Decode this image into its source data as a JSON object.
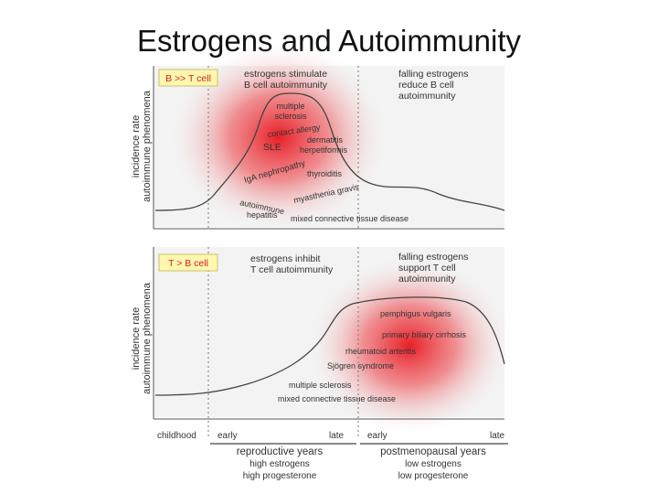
{
  "slide": {
    "title": "Estrogens and Autoimmunity"
  },
  "colors": {
    "heat": "#e8131c",
    "panel_bg": "#f3f3f3",
    "badge_bg": "#fff7b0",
    "badge_border": "#c9c26a",
    "badge_text": "#d42020",
    "curve": "#444444"
  },
  "panels": {
    "top": {
      "badge": "B >> T cell",
      "ylabel_line1": "incidence rate",
      "ylabel_line2": "autoimmune phenomena",
      "left_note": [
        "estrogens stimulate",
        "B cell autoimmunity"
      ],
      "right_note": [
        "falling estrogens",
        "reduce B cell",
        "autoimmunity"
      ],
      "diseases": {
        "multiple_sclerosis": [
          "multiple",
          "sclerosis"
        ],
        "contact_allergy": "contact allergy",
        "sle": "SLE",
        "dermatitis": [
          "dermatitis",
          "herpetiformis"
        ],
        "iga_nephropathy": "IgA nephropathy",
        "thyroiditis": "thyroiditis",
        "myasthenia": "myasthenia gravis",
        "hepatitis": [
          "autoimmune",
          "hepatitis"
        ],
        "mctd": "mixed connective tissue disease"
      }
    },
    "bottom": {
      "badge": "T > B cell",
      "ylabel_line1": "incidence rate",
      "ylabel_line2": "autoimmune phenomena",
      "left_note": [
        "estrogens inhibit",
        "T cell autoimmunity"
      ],
      "right_note": [
        "falling estrogens",
        "support T cell",
        "autoimmunity"
      ],
      "diseases": {
        "pemphigus": "pemphigus vulgaris",
        "pbc": "primary biliary cirrhosis",
        "ra": "rheumatoid arteritis",
        "sjogren": "Sjögren syndrome",
        "ms": "multiple sclerosis",
        "mctd": "mixed connective tissue disease"
      }
    }
  },
  "axis": {
    "childhood": "childhood",
    "early1": "early",
    "late1": "late",
    "early2": "early",
    "late2": "late",
    "repro": "reproductive years",
    "repro_sub1": "high estrogens",
    "repro_sub2": "high progesterone",
    "post": "postmenopausal years",
    "post_sub1": "low estrogens",
    "post_sub2": "low progesterone"
  }
}
